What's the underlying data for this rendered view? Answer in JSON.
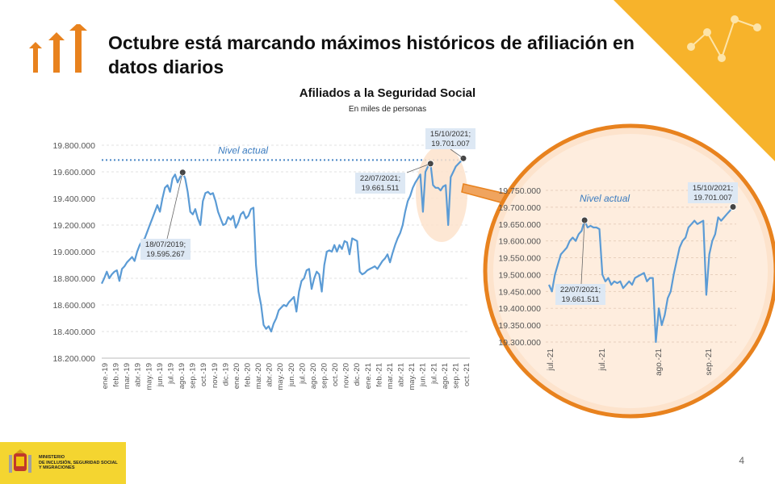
{
  "slide": {
    "title": "Octubre está marcando máximos históricos de afiliación en datos diarios",
    "page_number": "4",
    "ministry_lines": [
      "MINISTERIO",
      "DE INCLUSIÓN, SEGURIDAD SOCIAL",
      "Y MIGRACIONES"
    ],
    "colors": {
      "accent_orange": "#e8821e",
      "corner_yellow": "#f7b32b",
      "line_blue": "#5b9bd5",
      "zoom_bg": "#fde3cc",
      "ministry_yellow": "#f4d530"
    }
  },
  "chart_data": [
    {
      "type": "line",
      "title": "Afiliados a la Seguridad Social",
      "subtitle": "En miles de personas",
      "ylim": [
        18200000,
        19800000
      ],
      "y_ticks": [
        "19.800.000",
        "19.600.000",
        "19.400.000",
        "19.200.000",
        "19.000.000",
        "18.800.000",
        "18.600.000",
        "18.400.000",
        "18.200.000"
      ],
      "x_ticks": [
        "ene.-19",
        "feb.-19",
        "mar.-19",
        "abr.-19",
        "may.-19",
        "jun.-19",
        "jul.-19",
        "ago.-19",
        "sep.-19",
        "oct.-19",
        "nov.-19",
        "dic.-19",
        "ene.-20",
        "feb.-20",
        "mar.-20",
        "abr.-20",
        "may.-20",
        "jun.-20",
        "jul.-20",
        "ago.-20",
        "sep.-20",
        "oct.-20",
        "nov.-20",
        "dic.-20",
        "ene.-21",
        "feb.-21",
        "mar.-21",
        "abr.-21",
        "may.-21",
        "jun.-21",
        "jul.-21",
        "ago.-21",
        "sep.-21",
        "oct.-21"
      ],
      "grid": true,
      "reference_line": {
        "label": "Nivel actual",
        "value": 19701007
      },
      "series": [
        {
          "values": [
            18760000,
            18800000,
            18850000,
            18800000,
            18830000,
            18850000,
            18860000,
            18780000,
            18870000,
            18890000,
            18920000,
            18940000,
            18960000,
            18930000,
            19000000,
            19050000,
            19080000,
            19100000,
            19150000,
            19200000,
            19250000,
            19300000,
            19350000,
            19300000,
            19400000,
            19480000,
            19500000,
            19450000,
            19550000,
            19580000,
            19520000,
            19560000,
            19595267,
            19550000,
            19450000,
            19300000,
            19280000,
            19320000,
            19250000,
            19200000,
            19380000,
            19440000,
            19450000,
            19430000,
            19440000,
            19380000,
            19300000,
            19250000,
            19200000,
            19210000,
            19260000,
            19240000,
            19270000,
            19180000,
            19220000,
            19280000,
            19300000,
            19250000,
            19270000,
            19320000,
            19330000,
            18900000,
            18700000,
            18600000,
            18450000,
            18420000,
            18440000,
            18400000,
            18460000,
            18500000,
            18560000,
            18580000,
            18600000,
            18590000,
            18620000,
            18640000,
            18660000,
            18550000,
            18700000,
            18780000,
            18800000,
            18860000,
            18870000,
            18720000,
            18800000,
            18850000,
            18830000,
            18700000,
            18900000,
            19000000,
            19010000,
            19000000,
            19050000,
            19000000,
            19050000,
            19020000,
            19080000,
            19070000,
            18980000,
            19100000,
            19090000,
            19080000,
            18850000,
            18830000,
            18840000,
            18860000,
            18870000,
            18880000,
            18890000,
            18870000,
            18900000,
            18930000,
            18950000,
            18980000,
            18920000,
            18990000,
            19050000,
            19100000,
            19140000,
            19200000,
            19300000,
            19380000,
            19420000,
            19480000,
            19520000,
            19550000,
            19580000,
            19300000,
            19600000,
            19640000,
            19661511,
            19500000,
            19480000,
            19480000,
            19460000,
            19490000,
            19500000,
            19200000,
            19560000,
            19600000,
            19640000,
            19660000,
            19680000,
            19701007
          ]
        }
      ],
      "annotations": [
        {
          "label": "18/07/2019;",
          "value_label": "19.595.267",
          "date": "18/07/2019",
          "value": 19595267
        },
        {
          "label": "22/07/2021;",
          "value_label": "19.661.511",
          "date": "22/07/2021",
          "value": 19661511
        },
        {
          "label": "15/10/2021;",
          "value_label": "19.701.007",
          "date": "15/10/2021",
          "value": 19701007
        }
      ]
    },
    {
      "type": "line",
      "ylim": [
        19300000,
        19750000
      ],
      "y_ticks": [
        "19.750.000",
        "19.700.000",
        "19.650.000",
        "19.600.000",
        "19.550.000",
        "19.500.000",
        "19.450.000",
        "19.400.000",
        "19.350.000",
        "19.300.000"
      ],
      "x_ticks": [
        "jul.-21",
        "jul.-21",
        "ago.-21",
        "sep.-21"
      ],
      "grid": true,
      "reference_line": {
        "label": "Nivel actual",
        "value": 19701007
      },
      "series": [
        {
          "values": [
            19470000,
            19450000,
            19500000,
            19530000,
            19560000,
            19570000,
            19580000,
            19600000,
            19610000,
            19600000,
            19620000,
            19630000,
            19661511,
            19640000,
            19645000,
            19640000,
            19640000,
            19635000,
            19500000,
            19480000,
            19490000,
            19470000,
            19480000,
            19475000,
            19480000,
            19460000,
            19470000,
            19480000,
            19470000,
            19490000,
            19495000,
            19500000,
            19505000,
            19480000,
            19490000,
            19490000,
            19300000,
            19400000,
            19350000,
            19380000,
            19430000,
            19450000,
            19500000,
            19540000,
            19580000,
            19600000,
            19610000,
            19640000,
            19650000,
            19660000,
            19650000,
            19655000,
            19660000,
            19440000,
            19560000,
            19600000,
            19620000,
            19670000,
            19660000,
            19670000,
            19680000,
            19690000,
            19701007
          ]
        }
      ],
      "annotations": [
        {
          "label": "22/07/2021;",
          "value_label": "19.661.511",
          "date": "22/07/2021",
          "value": 19661511
        },
        {
          "label": "15/10/2021;",
          "value_label": "19.701.007",
          "date": "15/10/2021",
          "value": 19701007
        }
      ]
    }
  ]
}
